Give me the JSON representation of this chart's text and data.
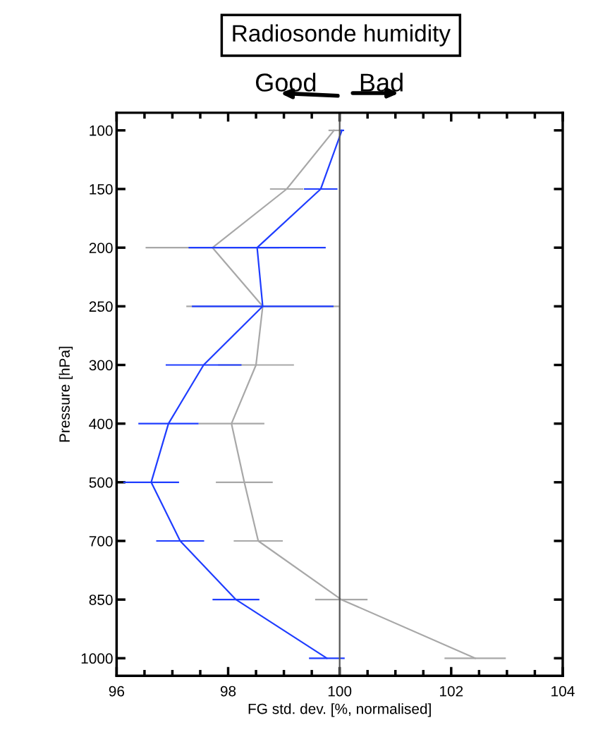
{
  "chart_data": {
    "type": "line",
    "title": "Radiosonde humidity",
    "xlabel": "FG std. dev. [%, normalised]",
    "ylabel": "Pressure [hPa]",
    "orientation": "horizontal",
    "categories": [
      "100",
      "150",
      "200",
      "250",
      "300",
      "400",
      "500",
      "700",
      "850",
      "1000"
    ],
    "series": [
      {
        "color": "#a8a8a8",
        "values": [
          99.9,
          99.05,
          97.72,
          98.62,
          98.5,
          98.06,
          98.29,
          98.54,
          100.03,
          102.43
        ],
        "errors": [
          0.1,
          0.3,
          1.2,
          1.37,
          0.68,
          0.59,
          0.51,
          0.44,
          0.47,
          0.55
        ]
      },
      {
        "color": "#1f3dff",
        "values": [
          100.04,
          99.66,
          98.52,
          98.62,
          97.56,
          96.93,
          96.62,
          97.14,
          98.14,
          99.77
        ],
        "errors": [
          0.04,
          0.3,
          1.23,
          1.27,
          0.68,
          0.54,
          0.5,
          0.43,
          0.42,
          0.32
        ]
      }
    ],
    "xlim": [
      96,
      104
    ],
    "xticks": [
      96,
      98,
      100,
      102,
      104
    ],
    "ref_lines": [
      {
        "axis": "x",
        "value": 100,
        "color": "#555555"
      }
    ],
    "annotations": [
      "Good",
      "Bad"
    ],
    "grid": false,
    "legend": false,
    "marker": "none",
    "line_style": "solid"
  }
}
